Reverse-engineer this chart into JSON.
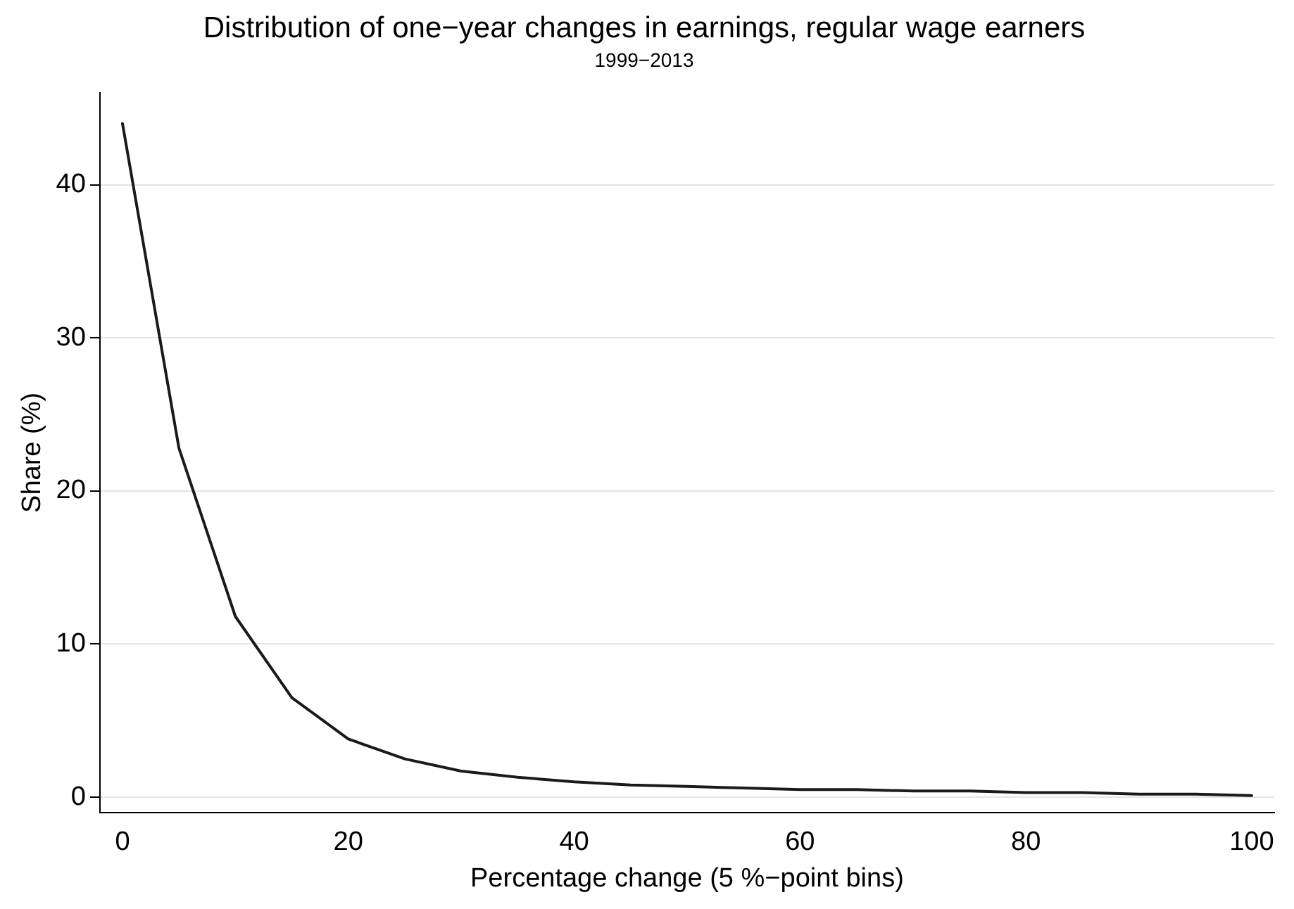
{
  "chart_data": {
    "type": "line",
    "title": "Distribution of one−year changes in earnings, regular wage earners",
    "subtitle": "1999−2013",
    "xlabel": "Percentage change (5 %−point bins)",
    "ylabel": "Share (%)",
    "x": [
      0,
      5,
      10,
      15,
      20,
      25,
      30,
      35,
      40,
      45,
      50,
      55,
      60,
      65,
      70,
      75,
      80,
      85,
      90,
      95,
      100
    ],
    "series": [
      {
        "color": "#1a1a1a",
        "values": [
          44.0,
          22.8,
          11.8,
          6.5,
          3.8,
          2.5,
          1.7,
          1.3,
          1.0,
          0.8,
          0.7,
          0.6,
          0.5,
          0.5,
          0.4,
          0.4,
          0.3,
          0.3,
          0.2,
          0.2,
          0.1
        ]
      }
    ],
    "xlim": [
      -2,
      102
    ],
    "ylim": [
      -1,
      46
    ],
    "xticks": [
      0,
      20,
      40,
      60,
      80,
      100
    ],
    "yticks": [
      0,
      10,
      20,
      30,
      40
    ],
    "grid": "y",
    "legend": false,
    "marker": "none",
    "line_style": "solid"
  }
}
